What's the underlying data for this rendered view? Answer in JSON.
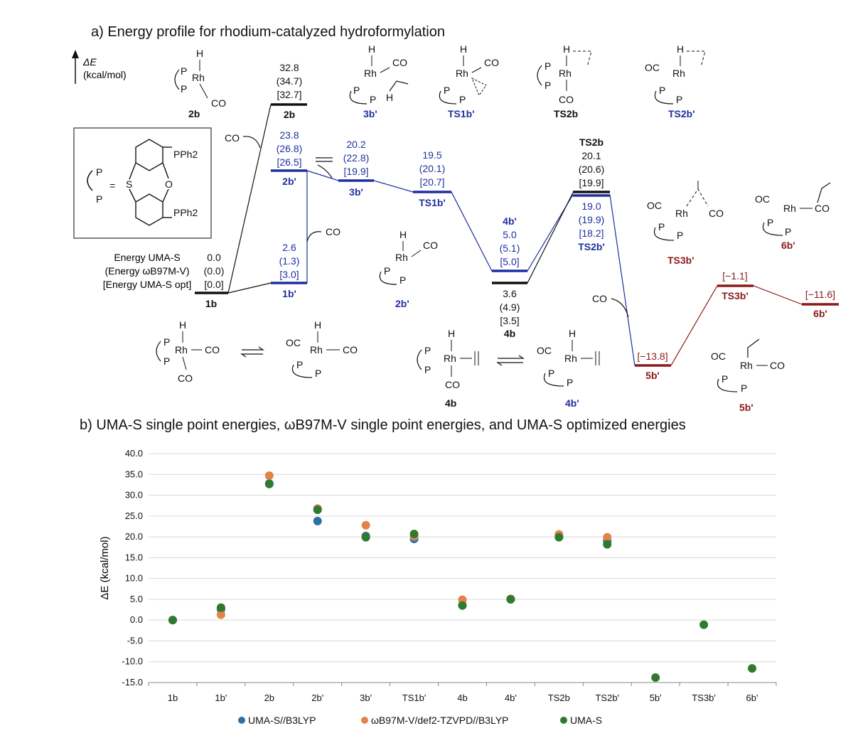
{
  "panel_a": {
    "title": "a) Energy profile for rhodium-catalyzed hydroformylation",
    "axis_symbol": "ΔE",
    "axis_unit": "(kcal/mol)",
    "method_labels": [
      "Energy UMA-S",
      "(Energy ωB97M-V)",
      "[Energy UMA-S opt]"
    ],
    "co": "CO",
    "ligand": {
      "p": "P",
      "s": "S",
      "o": "O",
      "pph2": "PPh2",
      "eq": "="
    },
    "rh": "Rh",
    "h": "H",
    "oc": "OC",
    "structure_captions": [
      "2b",
      "3b'",
      "TS1b'",
      "TS2b",
      "TS2b'",
      "2b'",
      "TS3b'",
      "6b'",
      "4b",
      "4b'",
      "5b'"
    ],
    "levels": [
      {
        "name": "1b",
        "lines": [
          "0.0",
          "(0.0)",
          "[0.0]"
        ]
      },
      {
        "name": "1b'",
        "lines": [
          "2.6",
          "(1.3)",
          "[3.0]"
        ]
      },
      {
        "name": "2b",
        "lines": [
          "32.8",
          "(34.7)",
          "[32.7]"
        ]
      },
      {
        "name": "2b'",
        "lines": [
          "23.8",
          "(26.8)",
          "[26.5]"
        ]
      },
      {
        "name": "3b'",
        "lines": [
          "20.2",
          "(22.8)",
          "[19.9]"
        ]
      },
      {
        "name": "TS1b'",
        "lines": [
          "19.5",
          "(20.1)",
          "[20.7]"
        ]
      },
      {
        "name": "4b'",
        "lines": [
          "5.0",
          "(5.1)",
          "[5.0]"
        ]
      },
      {
        "name": "4b",
        "lines": [
          "3.6",
          "(4.9)",
          "[3.5]"
        ]
      },
      {
        "name": "TS2b",
        "lines": [
          "20.1",
          "(20.6)",
          "[19.9]"
        ]
      },
      {
        "name": "TS2b'",
        "lines": [
          "19.0",
          "(19.9)",
          "[18.2]"
        ]
      },
      {
        "name": "5b'",
        "lines": [
          "[−13.8]"
        ]
      },
      {
        "name": "TS3b'",
        "lines": [
          "[−1.1]"
        ]
      },
      {
        "name": "6b'",
        "lines": [
          "[−11.6]"
        ]
      }
    ],
    "colors": {
      "black": "#111111",
      "blue": "#1f2fa0",
      "red": "#8b1a1a"
    }
  },
  "panel_b": {
    "title": "b) UMA-S single point energies, ωB97M-V single point energies, and UMA-S optimized energies"
  },
  "chart_data": {
    "type": "scatter",
    "categories": [
      "1b",
      "1b'",
      "2b",
      "2b'",
      "3b'",
      "TS1b'",
      "4b",
      "4b'",
      "TS2b",
      "TS2b'",
      "5b'",
      "TS3b'",
      "6b'"
    ],
    "ylabel": "ΔE (kcal/mol)",
    "ylim": [
      -15,
      40
    ],
    "yticks": [
      "40.0",
      "35.0",
      "30.0",
      "25.0",
      "20.0",
      "15.0",
      "10.0",
      "5.0",
      "0.0",
      "-5.0",
      "-10.0",
      "-15.0"
    ],
    "grid": true,
    "legend_position": "bottom",
    "series": [
      {
        "name": "UMA-S//B3LYP",
        "color": "#2e6fa3",
        "values": [
          0.0,
          2.6,
          32.8,
          23.8,
          20.2,
          19.5,
          3.6,
          5.0,
          20.1,
          19.0,
          null,
          null,
          null
        ]
      },
      {
        "name": "ωB97M-V/def2-TZVPD//B3LYP",
        "color": "#e2844a",
        "values": [
          0.0,
          1.3,
          34.7,
          26.8,
          22.8,
          20.1,
          4.9,
          5.1,
          20.6,
          19.9,
          null,
          null,
          null
        ]
      },
      {
        "name": "UMA-S",
        "color": "#2f7a2f",
        "values": [
          0.0,
          3.0,
          32.7,
          26.5,
          19.9,
          20.7,
          3.5,
          5.0,
          19.9,
          18.2,
          -13.8,
          -1.1,
          -11.6
        ]
      }
    ]
  }
}
